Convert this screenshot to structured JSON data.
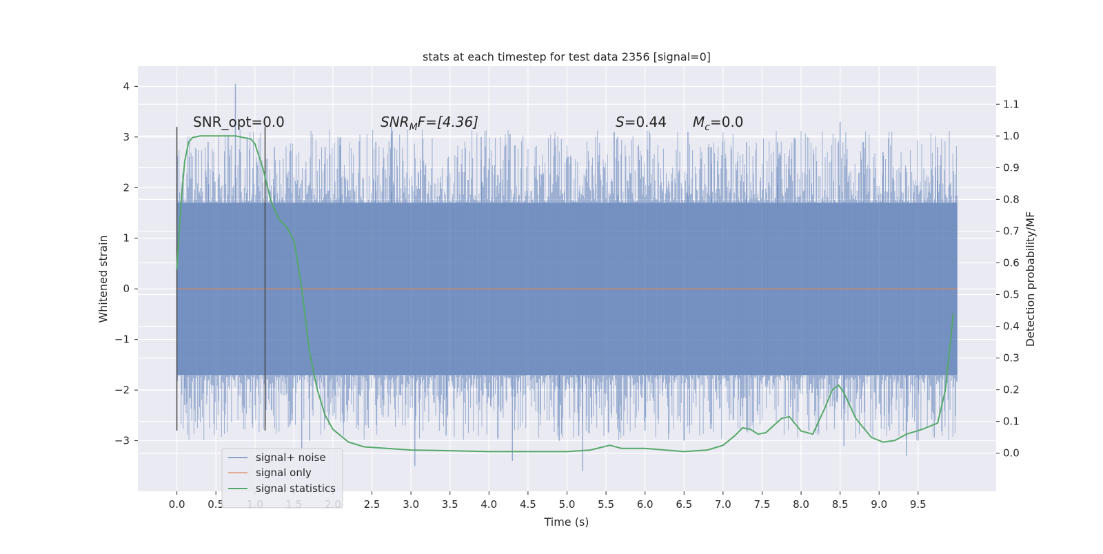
{
  "chart_data": {
    "type": "line",
    "title": "stats at each timestep for test data 2356 [signal=0]",
    "xlabel": "Time (s)",
    "ylabel": "Whitened strain",
    "ylabel_right": "Detection probability/MF",
    "xlim": [
      -0.5,
      10.5
    ],
    "ylim": [
      -4.0,
      4.4
    ],
    "ylim_right": [
      -0.12,
      1.22
    ],
    "x_ticks": [
      "0.0",
      "0.5",
      "1.0",
      "1.5",
      "2.0",
      "2.5",
      "3.0",
      "3.5",
      "4.0",
      "4.5",
      "5.0",
      "5.5",
      "6.0",
      "6.5",
      "7.0",
      "7.5",
      "8.0",
      "8.5",
      "9.0",
      "9.5"
    ],
    "y_ticks": [
      "4",
      "3",
      "2",
      "1",
      "0",
      "−1",
      "−2",
      "−3"
    ],
    "y_ticks_right": [
      "1.1",
      "1.0",
      "0.9",
      "0.8",
      "0.7",
      "0.6",
      "0.5",
      "0.4",
      "0.3",
      "0.2",
      "0.1",
      "0.0"
    ],
    "grid": true,
    "legend_position": "lower-left",
    "annotations": {
      "snr_opt": "SNR_opt=0.0",
      "snr_mf_label": "SNR",
      "snr_mf_sub": "M",
      "snr_mf_value": "F=[4.36]",
      "s_label": "S",
      "s_value": "=0.44",
      "mc_label": "M",
      "mc_sub": "c",
      "mc_value": "=0.0"
    },
    "series": [
      {
        "name": "signal+ noise",
        "color": "#4c72b0",
        "description_range": [
          -1.7,
          1.7
        ],
        "x_range": [
          0.0,
          10.0
        ],
        "spikes": [
          [
            0.75,
            4.05
          ],
          [
            0.1,
            -2.3
          ],
          [
            0.4,
            2.9
          ],
          [
            0.9,
            3.0
          ],
          [
            1.25,
            2.8
          ],
          [
            1.6,
            -3.2
          ],
          [
            1.7,
            -3.0
          ],
          [
            1.9,
            2.8
          ],
          [
            2.1,
            3.0
          ],
          [
            2.55,
            2.9
          ],
          [
            2.75,
            3.2
          ],
          [
            3.05,
            -3.5
          ],
          [
            3.45,
            -2.9
          ],
          [
            3.9,
            3.0
          ],
          [
            4.3,
            -3.4
          ],
          [
            4.9,
            -3.0
          ],
          [
            5.15,
            -2.9
          ],
          [
            5.2,
            -3.6
          ],
          [
            5.65,
            3.0
          ],
          [
            6.0,
            -2.8
          ],
          [
            6.5,
            -3.0
          ],
          [
            6.55,
            3.1
          ],
          [
            6.85,
            2.8
          ],
          [
            7.3,
            2.9
          ],
          [
            7.7,
            2.9
          ],
          [
            8.1,
            -2.8
          ],
          [
            8.5,
            3.3
          ],
          [
            8.55,
            -3.1
          ],
          [
            8.8,
            2.9
          ],
          [
            9.05,
            2.7
          ],
          [
            9.35,
            -3.3
          ],
          [
            9.5,
            -3.0
          ],
          [
            9.75,
            2.8
          ]
        ]
      },
      {
        "name": "signal only",
        "color": "#dd8452",
        "x": [
          0.0,
          10.0
        ],
        "y": [
          0.0,
          0.0
        ]
      },
      {
        "name": "signal statistics",
        "color": "#55a868",
        "axis": "right",
        "x": [
          0.0,
          0.05,
          0.1,
          0.15,
          0.2,
          0.3,
          0.5,
          0.75,
          0.95,
          1.0,
          1.1,
          1.2,
          1.3,
          1.4,
          1.5,
          1.55,
          1.6,
          1.65,
          1.7,
          1.8,
          1.9,
          2.0,
          2.2,
          2.4,
          3.0,
          3.5,
          4.0,
          4.5,
          5.0,
          5.3,
          5.55,
          5.7,
          6.0,
          6.5,
          6.8,
          7.0,
          7.15,
          7.25,
          7.35,
          7.45,
          7.55,
          7.75,
          7.85,
          8.0,
          8.15,
          8.3,
          8.4,
          8.48,
          8.55,
          8.7,
          8.9,
          9.05,
          9.2,
          9.35,
          9.55,
          9.75,
          9.85,
          9.95
        ],
        "y": [
          0.58,
          0.78,
          0.92,
          0.98,
          0.995,
          1.0,
          1.0,
          1.0,
          0.99,
          0.975,
          0.9,
          0.8,
          0.74,
          0.715,
          0.67,
          0.6,
          0.52,
          0.42,
          0.32,
          0.2,
          0.12,
          0.075,
          0.035,
          0.02,
          0.01,
          0.008,
          0.005,
          0.005,
          0.005,
          0.01,
          0.025,
          0.015,
          0.015,
          0.005,
          0.01,
          0.025,
          0.055,
          0.08,
          0.075,
          0.06,
          0.065,
          0.11,
          0.115,
          0.07,
          0.06,
          0.14,
          0.2,
          0.215,
          0.19,
          0.11,
          0.05,
          0.035,
          0.04,
          0.06,
          0.075,
          0.095,
          0.2,
          0.44
        ]
      }
    ],
    "vertical_lines": [
      {
        "x": 0.0,
        "y_range": [
          -2.8,
          3.2
        ]
      },
      {
        "x": 1.13,
        "y_range": [
          -2.8,
          3.2
        ]
      }
    ]
  }
}
